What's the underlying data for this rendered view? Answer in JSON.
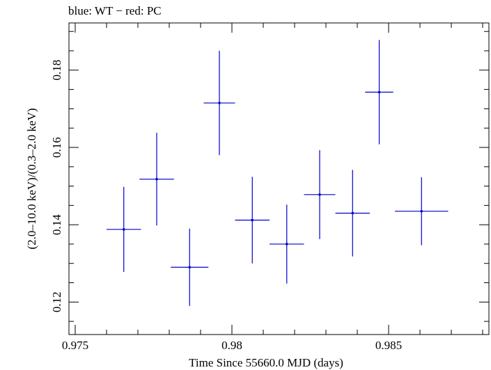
{
  "header": {
    "title": "blue: WT − red: PC"
  },
  "chart_data": {
    "type": "scatter",
    "title": "blue: WT − red: PC",
    "xlabel": "Time Since 55660.0 MJD (days)",
    "ylabel": "(2.0–10.0 keV)/(0.3–2.0 keV)",
    "xlim": [
      0.9748,
      0.9882
    ],
    "ylim": [
      0.1116,
      0.1922
    ],
    "xticks": [
      0.975,
      0.98,
      0.985
    ],
    "xtick_labels": [
      "0.975",
      "0.98",
      "0.985"
    ],
    "yticks": [
      0.12,
      0.14,
      0.16,
      0.18
    ],
    "ytick_labels": [
      "0.12",
      "0.14",
      "0.16",
      "0.18"
    ],
    "grid": false,
    "series": [
      {
        "name": "WT",
        "color": "#0000cc",
        "points": [
          {
            "x": 0.97655,
            "xerr": 0.00055,
            "y": 0.1388,
            "yerr": 0.011
          },
          {
            "x": 0.9776,
            "xerr": 0.00055,
            "y": 0.1518,
            "yerr": 0.012
          },
          {
            "x": 0.97865,
            "xerr": 0.0006,
            "y": 0.129,
            "yerr": 0.01
          },
          {
            "x": 0.9796,
            "xerr": 0.0005,
            "y": 0.1715,
            "yerr": 0.0135
          },
          {
            "x": 0.98065,
            "xerr": 0.00055,
            "y": 0.1412,
            "yerr": 0.0112
          },
          {
            "x": 0.98175,
            "xerr": 0.00055,
            "y": 0.135,
            "yerr": 0.0102
          },
          {
            "x": 0.9828,
            "xerr": 0.0005,
            "y": 0.1478,
            "yerr": 0.0115
          },
          {
            "x": 0.98385,
            "xerr": 0.00055,
            "y": 0.143,
            "yerr": 0.0112
          },
          {
            "x": 0.9847,
            "xerr": 0.00045,
            "y": 0.1743,
            "yerr": 0.0135
          },
          {
            "x": 0.98605,
            "xerr": 0.00085,
            "y": 0.1435,
            "yerr": 0.0088
          }
        ]
      }
    ]
  }
}
